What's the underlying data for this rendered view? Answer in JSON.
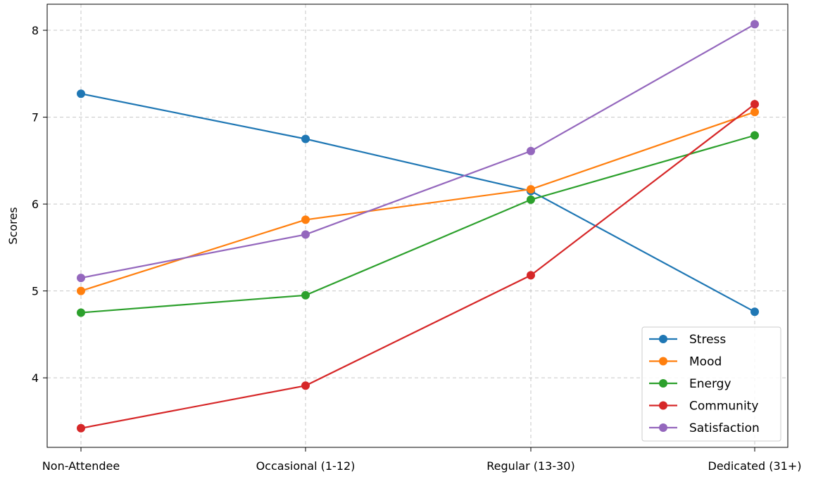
{
  "chart_data": {
    "type": "line",
    "title": "",
    "xlabel": "",
    "ylabel": "Scores",
    "categories": [
      "Non-Attendee",
      "Occasional (1-12)",
      "Regular (13-30)",
      "Dedicated (31+)"
    ],
    "ylim": [
      3.2,
      8.3
    ],
    "yticks": [
      4,
      5,
      6,
      7,
      8
    ],
    "grid": true,
    "legend_position": "bottom-right",
    "series": [
      {
        "name": "Stress",
        "color": "#1f77b4",
        "values": [
          7.27,
          6.75,
          6.15,
          4.76
        ]
      },
      {
        "name": "Mood",
        "color": "#ff7f0e",
        "values": [
          5.0,
          5.82,
          6.17,
          7.06
        ]
      },
      {
        "name": "Energy",
        "color": "#2ca02c",
        "values": [
          4.75,
          4.95,
          6.05,
          6.79
        ]
      },
      {
        "name": "Community",
        "color": "#d62728",
        "values": [
          3.42,
          3.91,
          5.18,
          7.15
        ]
      },
      {
        "name": "Satisfaction",
        "color": "#9467bd",
        "values": [
          5.15,
          5.65,
          6.61,
          8.07
        ]
      }
    ]
  }
}
